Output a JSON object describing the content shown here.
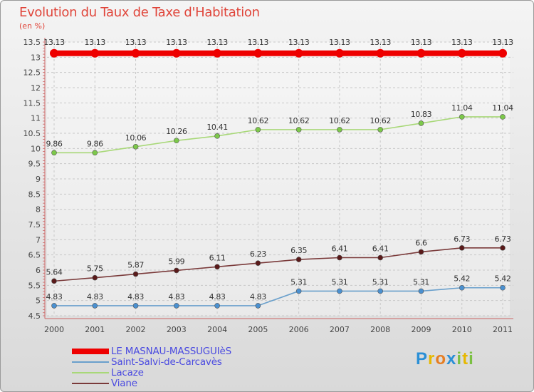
{
  "header": {
    "title": "Evolution du Taux de Taxe d'Habitation",
    "unit": "(en %)"
  },
  "logo": {
    "text": "Proxiti",
    "letters": [
      {
        "ch": "P",
        "color": "#2a8fd6"
      },
      {
        "ch": "r",
        "color": "#e6b800"
      },
      {
        "ch": "o",
        "color": "#e67e22"
      },
      {
        "ch": "x",
        "color": "#2a8fd6"
      },
      {
        "ch": "i",
        "color": "#7bc043"
      },
      {
        "ch": "t",
        "color": "#e6b800"
      },
      {
        "ch": "i",
        "color": "#7bc043"
      }
    ]
  },
  "chart_data": {
    "type": "line",
    "title": "Evolution du Taux de Taxe d'Habitation",
    "ylabel": "(en %)",
    "xlabel": "",
    "ylim": [
      4.5,
      13.5
    ],
    "ytick_step": 0.5,
    "yticks": [
      "4.5",
      "5",
      "5.5",
      "6",
      "6.5",
      "7",
      "7.5",
      "8",
      "8.5",
      "9",
      "9.5",
      "10",
      "10.5",
      "11",
      "11.5",
      "12",
      "12.5",
      "13",
      "13.5"
    ],
    "categories": [
      "2000",
      "2001",
      "2002",
      "2003",
      "2004",
      "2005",
      "2006",
      "2007",
      "2008",
      "2009",
      "2010",
      "2011"
    ],
    "grid": true,
    "legend_position": "bottom-left",
    "series": [
      {
        "name": "LE MASNAU-MASSUGUIèS",
        "color": "#ee0000",
        "thick": true,
        "values": [
          13.13,
          13.13,
          13.13,
          13.13,
          13.13,
          13.13,
          13.13,
          13.13,
          13.13,
          13.13,
          13.13,
          13.13
        ],
        "labels": [
          "13.13",
          "13.13",
          "13.13",
          "13.13",
          "13.13",
          "13.13",
          "13.13",
          "13.13",
          "13.13",
          "13.13",
          "13.13",
          "13.13"
        ]
      },
      {
        "name": "Saint-Salvi-de-Carcavès",
        "color": "#6aa0cc",
        "marker": "#4a90d0",
        "thick": false,
        "values": [
          4.83,
          4.83,
          4.83,
          4.83,
          4.83,
          4.83,
          5.31,
          5.31,
          5.31,
          5.31,
          5.42,
          5.42
        ],
        "labels": [
          "4.83",
          "4.83",
          "4.83",
          "4.83",
          "4.83",
          "4.83",
          "5.31",
          "5.31",
          "5.31",
          "5.31",
          "5.42",
          "5.42"
        ]
      },
      {
        "name": "Lacaze",
        "color": "#a8d878",
        "marker": "#7cc84a",
        "thick": false,
        "values": [
          9.86,
          9.86,
          10.06,
          10.26,
          10.41,
          10.62,
          10.62,
          10.62,
          10.62,
          10.83,
          11.04,
          11.04
        ],
        "labels": [
          "9.86",
          "9.86",
          "10.06",
          "10.26",
          "10.41",
          "10.62",
          "10.62",
          "10.62",
          "10.62",
          "10.83",
          "11.04",
          "11.04"
        ]
      },
      {
        "name": "Viane",
        "color": "#7a3a3a",
        "marker": "#5a1a1a",
        "thick": false,
        "values": [
          5.64,
          5.75,
          5.87,
          5.99,
          6.11,
          6.23,
          6.35,
          6.41,
          6.41,
          6.6,
          6.73,
          6.73
        ],
        "labels": [
          "5.64",
          "5.75",
          "5.87",
          "5.99",
          "6.11",
          "6.23",
          "6.35",
          "6.41",
          "6.41",
          "6.6",
          "6.73",
          "6.73"
        ]
      }
    ]
  }
}
